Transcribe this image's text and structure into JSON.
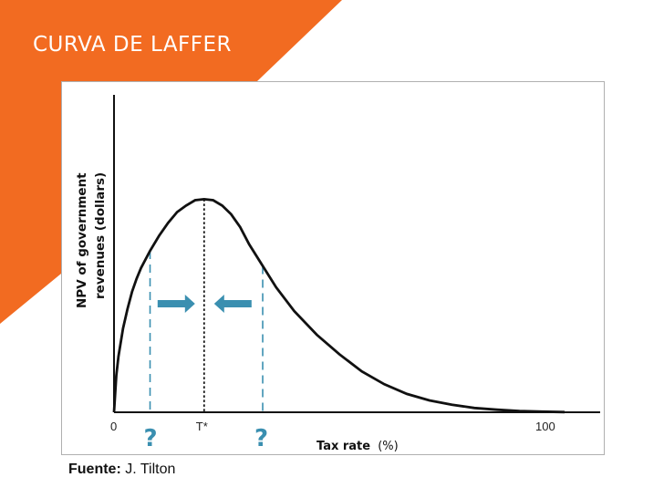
{
  "slide": {
    "title": "CURVA DE LAFFER",
    "source_label": "Fuente:",
    "source_value": "J. Tilton",
    "accent_color": "#f26b21"
  },
  "chart_data": {
    "type": "line",
    "title": "",
    "xlabel_main": "Tax rate",
    "xlabel_unit": "(%)",
    "ylabel_line1": "NPV of government",
    "ylabel_line2": "revenues (dollars)",
    "xlim": [
      0,
      100
    ],
    "ylim": [
      0,
      100
    ],
    "x_ticks": [
      "0",
      "100"
    ],
    "optimum_label": "T*",
    "optimum_x": 20,
    "uncertainty_labels": [
      "?",
      "?"
    ],
    "uncertainty_x": [
      8,
      33
    ],
    "series": [
      {
        "x": [
          0,
          0.5,
          1,
          2,
          3,
          4,
          5,
          6,
          8,
          10,
          12,
          14,
          16,
          18,
          20,
          22,
          24,
          26,
          28,
          30,
          33,
          36,
          40,
          45,
          50,
          55,
          60,
          65,
          70,
          75,
          80,
          85,
          90,
          95,
          100
        ],
        "values": [
          0,
          17,
          26,
          39,
          48,
          56,
          62,
          67,
          75,
          82,
          88,
          93,
          96,
          98.5,
          99,
          98.5,
          96,
          92,
          86,
          78,
          68,
          58,
          47,
          36,
          27,
          19,
          13,
          8.5,
          5.5,
          3.5,
          2,
          1.2,
          0.6,
          0.3,
          0.1
        ]
      }
    ],
    "colors": {
      "curve": "#111111",
      "guides": "#3a8fb0",
      "arrows": "#3a8fb0"
    }
  }
}
